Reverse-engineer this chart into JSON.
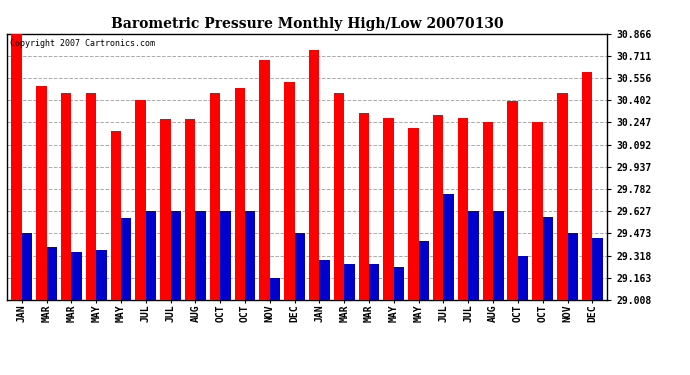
{
  "title": "Barometric Pressure Monthly High/Low 20070130",
  "copyright": "Copyright 2007 Cartronics.com",
  "categories": [
    "JAN",
    "MAR",
    "MAR",
    "MAY",
    "MAY",
    "JUL",
    "JUL",
    "AUG",
    "OCT",
    "OCT",
    "NOV",
    "DEC",
    "JAN",
    "MAR",
    "MAR",
    "MAY",
    "MAY",
    "JUL",
    "JUL",
    "AUG",
    "OCT",
    "OCT",
    "NOV",
    "DEC"
  ],
  "highs": [
    30.866,
    30.501,
    30.456,
    30.456,
    30.19,
    30.402,
    30.27,
    30.27,
    30.456,
    30.49,
    30.68,
    30.53,
    30.75,
    30.456,
    30.31,
    30.28,
    30.21,
    30.3,
    30.28,
    30.247,
    30.4,
    30.247,
    30.456,
    30.6
  ],
  "lows": [
    29.473,
    29.38,
    29.34,
    29.355,
    29.58,
    29.627,
    29.627,
    29.627,
    29.627,
    29.627,
    29.163,
    29.473,
    29.29,
    29.26,
    29.26,
    29.24,
    29.418,
    29.748,
    29.627,
    29.627,
    29.318,
    29.59,
    29.473,
    29.44
  ],
  "bar_color_high": "#FF0000",
  "bar_color_low": "#0000CC",
  "background_color": "#FFFFFF",
  "grid_color": "#AAAAAA",
  "ymin": 29.008,
  "ymax": 30.866,
  "yticks": [
    29.008,
    29.163,
    29.318,
    29.473,
    29.627,
    29.782,
    29.937,
    30.092,
    30.247,
    30.402,
    30.556,
    30.711,
    30.866
  ],
  "figwidth": 6.9,
  "figheight": 3.75,
  "dpi": 100
}
